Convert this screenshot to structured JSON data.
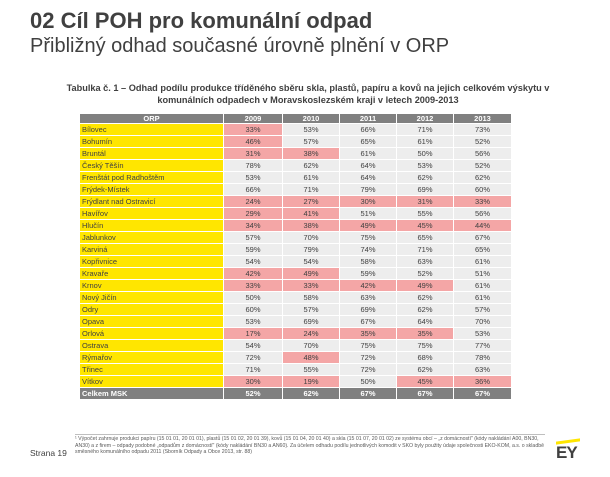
{
  "slide": {
    "title": "02 Cíl POH pro komunální odpad",
    "subtitle": "Přibližný odhad současné úrovně plnění v ORP",
    "caption": "Tabulka č. 1 – Odhad podílu produkce tříděného sběru skla, plastů, papíru a kovů na jejich celkovém výskytu v komunálních odpadech v Moravskoslezském kraji v letech 2009-2013",
    "page_label": "Strana 19",
    "footnote": "¹ Výpočet zahrnuje produkci papíru (15 01 01, 20 01 01), plastů (15 01 02, 20 01 39), kovů (15 01 04, 20 01 40) a skla (15 01 07, 20 01 02) ze systému obcí – „z domácností\" (kódy nakládání A00, BN30, AN30) a z firem – odpady podobné „odpadům z domácností\" (kódy nakládání BN30 a AN60). Za účelem odhadu podílu jednotlivých komodit v SKO byly použity údaje společnosti EKO-KOM, a.s. o skladbě směsného komunálního odpadu 2011 (Sborník Odpady a Obce 2013, str. 88)",
    "logo_text": "EY",
    "brand_color": "#ffe600",
    "highlight_color": "#f4a6a6"
  },
  "table": {
    "headers": [
      "ORP",
      "2009",
      "2010",
      "2011",
      "2012",
      "2013"
    ],
    "rows": [
      {
        "name": "Bílovec",
        "values": [
          "33%",
          "53%",
          "66%",
          "71%",
          "73%"
        ],
        "low": [
          1,
          0,
          0,
          0,
          0
        ]
      },
      {
        "name": "Bohumín",
        "values": [
          "46%",
          "57%",
          "65%",
          "61%",
          "52%"
        ],
        "low": [
          1,
          0,
          0,
          0,
          0
        ]
      },
      {
        "name": "Bruntál",
        "values": [
          "31%",
          "38%",
          "61%",
          "50%",
          "56%"
        ],
        "low": [
          1,
          1,
          0,
          0,
          0
        ]
      },
      {
        "name": "Český Těšín",
        "values": [
          "78%",
          "62%",
          "64%",
          "53%",
          "52%"
        ],
        "low": [
          0,
          0,
          0,
          0,
          0
        ]
      },
      {
        "name": "Frenštát pod Radhoštěm",
        "values": [
          "53%",
          "61%",
          "64%",
          "62%",
          "62%"
        ],
        "low": [
          0,
          0,
          0,
          0,
          0
        ]
      },
      {
        "name": "Frýdek-Místek",
        "values": [
          "66%",
          "71%",
          "79%",
          "69%",
          "60%"
        ],
        "low": [
          0,
          0,
          0,
          0,
          0
        ]
      },
      {
        "name": "Frýdlant nad Ostravicí",
        "values": [
          "24%",
          "27%",
          "30%",
          "31%",
          "33%"
        ],
        "low": [
          1,
          1,
          1,
          1,
          1
        ]
      },
      {
        "name": "Havířov",
        "values": [
          "29%",
          "41%",
          "51%",
          "55%",
          "56%"
        ],
        "low": [
          1,
          1,
          0,
          0,
          0
        ]
      },
      {
        "name": "Hlučín",
        "values": [
          "34%",
          "38%",
          "49%",
          "45%",
          "44%"
        ],
        "low": [
          1,
          1,
          1,
          1,
          1
        ]
      },
      {
        "name": "Jablunkov",
        "values": [
          "57%",
          "70%",
          "75%",
          "65%",
          "67%"
        ],
        "low": [
          0,
          0,
          0,
          0,
          0
        ]
      },
      {
        "name": "Karviná",
        "values": [
          "59%",
          "79%",
          "74%",
          "71%",
          "65%"
        ],
        "low": [
          0,
          0,
          0,
          0,
          0
        ]
      },
      {
        "name": "Kopřivnice",
        "values": [
          "54%",
          "54%",
          "58%",
          "63%",
          "61%"
        ],
        "low": [
          0,
          0,
          0,
          0,
          0
        ]
      },
      {
        "name": "Kravaře",
        "values": [
          "42%",
          "49%",
          "59%",
          "52%",
          "51%"
        ],
        "low": [
          1,
          1,
          0,
          0,
          0
        ]
      },
      {
        "name": "Krnov",
        "values": [
          "33%",
          "33%",
          "42%",
          "49%",
          "61%"
        ],
        "low": [
          1,
          1,
          1,
          1,
          0
        ]
      },
      {
        "name": "Nový Jičín",
        "values": [
          "50%",
          "58%",
          "63%",
          "62%",
          "61%"
        ],
        "low": [
          0,
          0,
          0,
          0,
          0
        ]
      },
      {
        "name": "Odry",
        "values": [
          "60%",
          "57%",
          "69%",
          "62%",
          "57%"
        ],
        "low": [
          0,
          0,
          0,
          0,
          0
        ]
      },
      {
        "name": "Opava",
        "values": [
          "53%",
          "69%",
          "67%",
          "64%",
          "70%"
        ],
        "low": [
          0,
          0,
          0,
          0,
          0
        ]
      },
      {
        "name": "Orlová",
        "values": [
          "17%",
          "24%",
          "35%",
          "35%",
          "53%"
        ],
        "low": [
          1,
          1,
          1,
          1,
          0
        ]
      },
      {
        "name": "Ostrava",
        "values": [
          "54%",
          "70%",
          "75%",
          "75%",
          "77%"
        ],
        "low": [
          0,
          0,
          0,
          0,
          0
        ]
      },
      {
        "name": "Rýmařov",
        "values": [
          "72%",
          "48%",
          "72%",
          "68%",
          "78%"
        ],
        "low": [
          0,
          1,
          0,
          0,
          0
        ]
      },
      {
        "name": "Třinec",
        "values": [
          "71%",
          "55%",
          "72%",
          "62%",
          "63%"
        ],
        "low": [
          0,
          0,
          0,
          0,
          0
        ]
      },
      {
        "name": "Vítkov",
        "values": [
          "30%",
          "19%",
          "50%",
          "45%",
          "36%"
        ],
        "low": [
          1,
          1,
          0,
          1,
          1
        ]
      }
    ],
    "total": {
      "name": "Celkem MSK",
      "values": [
        "52%",
        "62%",
        "67%",
        "67%",
        "67%"
      ]
    }
  }
}
